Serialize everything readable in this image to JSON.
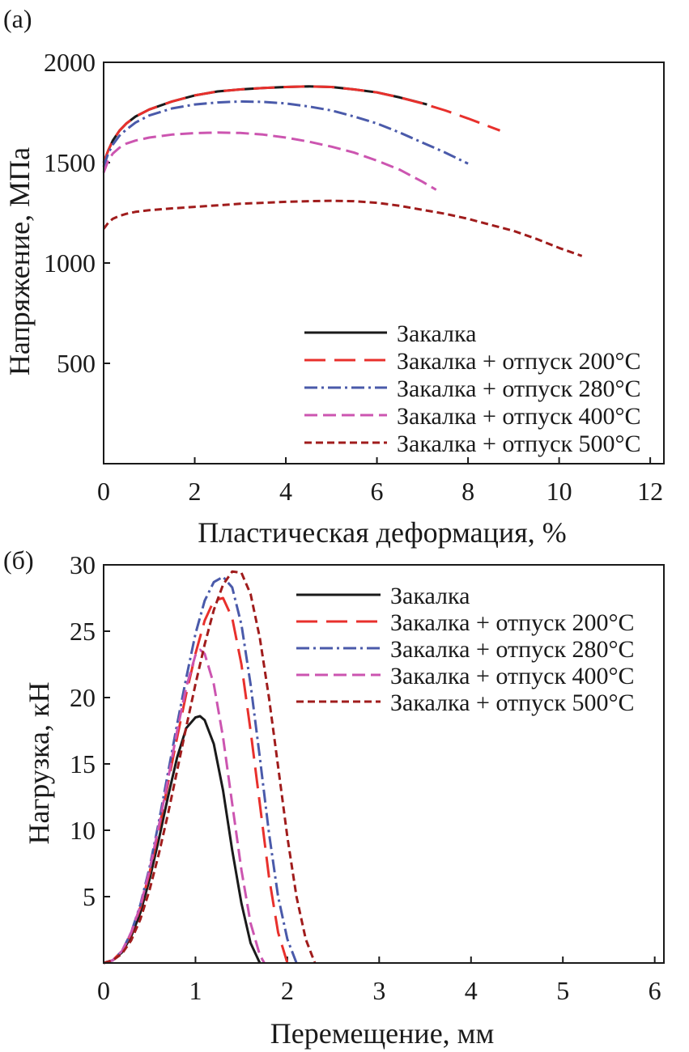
{
  "chart_data": [
    {
      "type": "line",
      "panel_label": "(а)",
      "xlabel": "Пластическая деформация, %",
      "ylabel": "Напряжение, МПа",
      "xlim": [
        0,
        12.3
      ],
      "ylim": [
        0,
        2000
      ],
      "xticks": [
        0,
        2,
        4,
        6,
        8,
        10,
        12
      ],
      "yticks": [
        500,
        1000,
        1500,
        2000
      ],
      "legend_position": "bottom-right",
      "series": [
        {
          "name": "Закалка",
          "color": "#1a1a1a",
          "dash": "solid",
          "x": [
            0,
            0.1,
            0.2,
            0.35,
            0.5,
            0.7,
            1,
            1.5,
            2,
            2.5,
            3,
            3.5,
            4,
            4.5,
            5,
            5.5,
            6,
            6.5,
            7.1
          ],
          "y": [
            1500,
            1560,
            1610,
            1660,
            1695,
            1730,
            1765,
            1805,
            1835,
            1855,
            1865,
            1872,
            1877,
            1880,
            1877,
            1865,
            1850,
            1825,
            1790
          ]
        },
        {
          "name": "Закалка + отпуск 200°C",
          "color": "#e8302c",
          "dash": "long",
          "x": [
            0,
            0.1,
            0.2,
            0.35,
            0.5,
            0.7,
            1,
            1.5,
            2,
            2.5,
            3,
            3.5,
            4,
            4.5,
            5,
            5.5,
            6,
            6.5,
            7,
            7.5,
            8,
            8.7
          ],
          "y": [
            1500,
            1560,
            1610,
            1660,
            1695,
            1730,
            1765,
            1805,
            1835,
            1855,
            1865,
            1872,
            1877,
            1880,
            1877,
            1865,
            1850,
            1825,
            1795,
            1760,
            1720,
            1660
          ]
        },
        {
          "name": "Закалка + отпуск 280°C",
          "color": "#4a5aaa",
          "dash": "dashdot",
          "x": [
            0,
            0.1,
            0.2,
            0.35,
            0.5,
            0.7,
            1,
            1.5,
            2,
            2.5,
            3,
            3.5,
            4,
            4.5,
            5,
            5.5,
            6,
            6.5,
            7,
            7.5,
            8
          ],
          "y": [
            1480,
            1545,
            1590,
            1635,
            1665,
            1700,
            1735,
            1770,
            1790,
            1800,
            1805,
            1803,
            1795,
            1780,
            1760,
            1730,
            1695,
            1650,
            1600,
            1550,
            1495
          ]
        },
        {
          "name": "Закалка + отпуск 400°C",
          "color": "#cc55b0",
          "dash": "medium",
          "x": [
            0,
            0.1,
            0.2,
            0.35,
            0.5,
            0.7,
            1,
            1.5,
            2,
            2.5,
            3,
            3.5,
            4,
            4.5,
            5,
            5.5,
            6,
            6.5,
            7,
            7.3
          ],
          "y": [
            1450,
            1510,
            1545,
            1575,
            1595,
            1610,
            1625,
            1640,
            1647,
            1650,
            1648,
            1640,
            1625,
            1605,
            1580,
            1550,
            1510,
            1465,
            1405,
            1365
          ]
        },
        {
          "name": "Закалка + отпуск 500°C",
          "color": "#a01c1c",
          "dash": "short",
          "x": [
            0,
            0.1,
            0.2,
            0.35,
            0.5,
            0.7,
            1,
            1.5,
            2,
            2.5,
            3,
            3.5,
            4,
            4.5,
            5,
            5.5,
            6,
            6.5,
            7,
            7.5,
            8,
            8.5,
            9,
            9.5,
            10,
            10.5
          ],
          "y": [
            1170,
            1200,
            1220,
            1235,
            1245,
            1255,
            1263,
            1272,
            1280,
            1287,
            1295,
            1300,
            1305,
            1308,
            1310,
            1308,
            1300,
            1285,
            1265,
            1245,
            1220,
            1190,
            1160,
            1120,
            1075,
            1035
          ]
        }
      ]
    },
    {
      "type": "line",
      "panel_label": "(б)",
      "xlabel": "Перемещение, мм",
      "ylabel": "Нагрузка, кН",
      "xlim": [
        0,
        6.1
      ],
      "ylim": [
        0,
        30
      ],
      "xticks": [
        0,
        1,
        2,
        3,
        4,
        5,
        6
      ],
      "yticks": [
        5,
        10,
        15,
        20,
        25,
        30
      ],
      "legend_position": "top-right",
      "series": [
        {
          "name": "Закалка",
          "color": "#1a1a1a",
          "dash": "solid",
          "x": [
            0,
            0.1,
            0.2,
            0.3,
            0.4,
            0.5,
            0.6,
            0.7,
            0.8,
            0.9,
            1.0,
            1.05,
            1.1,
            1.2,
            1.3,
            1.4,
            1.5,
            1.6,
            1.7
          ],
          "y": [
            0,
            0.2,
            0.8,
            2.0,
            3.8,
            6.3,
            9.3,
            12.5,
            15.5,
            17.7,
            18.5,
            18.6,
            18.3,
            16.5,
            13.0,
            8.5,
            4.5,
            1.5,
            0
          ]
        },
        {
          "name": "Закалка + отпуск 200°C",
          "color": "#e8302c",
          "dash": "long",
          "x": [
            0,
            0.1,
            0.2,
            0.3,
            0.4,
            0.5,
            0.6,
            0.7,
            0.8,
            0.9,
            1.0,
            1.1,
            1.2,
            1.3,
            1.4,
            1.5,
            1.6,
            1.7,
            1.8,
            1.9,
            2.0
          ],
          "y": [
            0,
            0.2,
            0.9,
            2.2,
            4.2,
            6.8,
            10.0,
            13.5,
            17.0,
            20.3,
            23.3,
            25.8,
            27.3,
            27.5,
            26.0,
            22.5,
            17.5,
            12.0,
            6.5,
            2.3,
            0
          ]
        },
        {
          "name": "Закалка + отпуск 280°C",
          "color": "#4a5aaa",
          "dash": "dashdot",
          "x": [
            0,
            0.1,
            0.2,
            0.3,
            0.4,
            0.5,
            0.6,
            0.7,
            0.8,
            0.9,
            1.0,
            1.1,
            1.2,
            1.3,
            1.4,
            1.5,
            1.6,
            1.7,
            1.8,
            1.9,
            2.0,
            2.1
          ],
          "y": [
            0,
            0.2,
            0.9,
            2.3,
            4.4,
            7.2,
            10.6,
            14.3,
            18.0,
            21.5,
            24.8,
            27.3,
            28.7,
            29.1,
            28.3,
            25.5,
            21.0,
            15.5,
            9.8,
            5.0,
            1.8,
            0
          ]
        },
        {
          "name": "Закалка + отпуск 400°C",
          "color": "#cc55b0",
          "dash": "medium",
          "x": [
            0,
            0.1,
            0.2,
            0.3,
            0.4,
            0.5,
            0.6,
            0.7,
            0.8,
            0.9,
            1.0,
            1.05,
            1.1,
            1.2,
            1.3,
            1.4,
            1.5,
            1.6,
            1.7,
            1.75
          ],
          "y": [
            0,
            0.2,
            0.9,
            2.3,
            4.3,
            7.0,
            10.3,
            13.8,
            17.5,
            20.8,
            23.2,
            23.6,
            23.3,
            21.0,
            17.0,
            12.0,
            7.0,
            3.0,
            0.6,
            0
          ]
        },
        {
          "name": "Закалка + отпуск 500°C",
          "color": "#a01c1c",
          "dash": "short",
          "x": [
            0,
            0.1,
            0.2,
            0.3,
            0.4,
            0.5,
            0.6,
            0.7,
            0.8,
            0.9,
            1.0,
            1.1,
            1.2,
            1.3,
            1.4,
            1.5,
            1.6,
            1.7,
            1.8,
            1.9,
            2.0,
            2.1,
            2.2,
            2.3
          ],
          "y": [
            0,
            0.2,
            0.7,
            1.7,
            3.3,
            5.5,
            8.2,
            11.2,
            14.5,
            17.8,
            21.0,
            24.0,
            26.6,
            28.5,
            29.5,
            29.4,
            27.8,
            24.5,
            20.0,
            14.8,
            9.5,
            5.0,
            1.8,
            0
          ]
        }
      ]
    }
  ]
}
